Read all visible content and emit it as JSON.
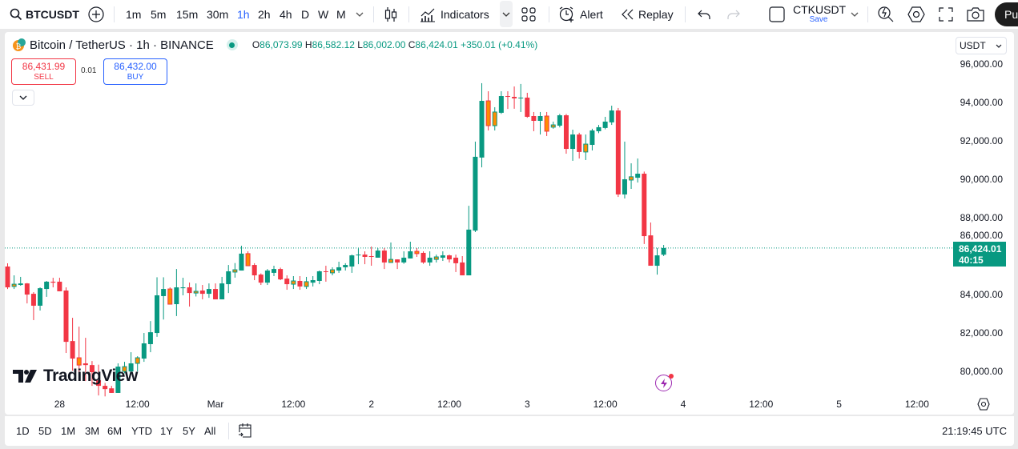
{
  "toolbar": {
    "symbol": "BTCUSDT",
    "intervals": [
      "1m",
      "5m",
      "15m",
      "30m",
      "1h",
      "2h",
      "4h",
      "D",
      "W",
      "M"
    ],
    "active_interval": "1h",
    "indicators_label": "Indicators",
    "alert_label": "Alert",
    "replay_label": "Replay",
    "layout_name": "CTKUSDT",
    "layout_save": "Save",
    "publish_label": "Pu"
  },
  "legend": {
    "title": "Bitcoin / TetherUS · 1h · BINANCE",
    "o_label": "O",
    "o": "86,073.99",
    "h_label": "H",
    "h": "86,582.12",
    "l_label": "L",
    "l": "86,002.00",
    "c_label": "C",
    "c": "86,424.01",
    "change": "+350.01 (+0.41%)"
  },
  "trade": {
    "sell_price": "86,431.99",
    "sell_label": "SELL",
    "spread": "0.01",
    "buy_price": "86,432.00",
    "buy_label": "BUY"
  },
  "price_axis": {
    "currency": "USDT",
    "last_price": "86,424.01",
    "countdown": "40:15"
  },
  "watermark": "TradingView",
  "bottom": {
    "ranges": [
      "1D",
      "5D",
      "1M",
      "3M",
      "6M",
      "YTD",
      "1Y",
      "5Y",
      "All"
    ],
    "clock": "21:19:45 UTC"
  },
  "colors": {
    "up": "#089981",
    "down": "#f23645",
    "highlight": "#ff8c00",
    "accent": "#2962ff"
  },
  "chart_data": {
    "type": "candlestick",
    "ylim": [
      78920,
      97580
    ],
    "y_ticks": [
      96000,
      94000,
      92000,
      90000,
      88000,
      86000,
      84000,
      82000,
      80000
    ],
    "y_tick_labels": [
      "96,000.00",
      "94,000.00",
      "92,000.00",
      "90,000.00",
      "88,000.00",
      "86,000.00",
      "84,000.00",
      "82,000.00",
      "80,000.00"
    ],
    "x_tick_labels": [
      "28",
      "12:00",
      "Mar",
      "12:00",
      "2",
      "12:00",
      "3",
      "12:00",
      "4",
      "12:00",
      "5",
      "12:00"
    ],
    "last_price": 86424.01,
    "ohlc": [
      [
        85460,
        85625,
        84290,
        84375
      ],
      [
        84420,
        85000,
        84290,
        84540
      ],
      [
        84500,
        84920,
        84460,
        84580
      ],
      [
        84580,
        84600,
        83540,
        84000
      ],
      [
        84040,
        84125,
        82670,
        83420
      ],
      [
        83420,
        84375,
        83170,
        84330
      ],
      [
        84290,
        84710,
        83880,
        84670
      ],
      [
        84670,
        84875,
        84375,
        84620
      ],
      [
        84670,
        84875,
        84170,
        84170
      ],
      [
        84210,
        84375,
        80960,
        81540
      ],
      [
        81580,
        82790,
        80040,
        80670
      ],
      [
        80710,
        82330,
        79900,
        80330
      ],
      [
        80420,
        81750,
        79500,
        80330
      ],
      [
        80330,
        80540,
        79250,
        79960
      ],
      [
        79540,
        80350,
        78750,
        79250
      ],
      [
        79250,
        79400,
        78700,
        79080
      ],
      [
        79120,
        79250,
        78880,
        78880
      ],
      [
        78880,
        80420,
        78880,
        80250
      ],
      [
        80000,
        80500,
        79900,
        80250
      ],
      [
        80000,
        81000,
        79830,
        80420
      ],
      [
        80420,
        80790,
        80000,
        80710
      ],
      [
        80670,
        82000,
        80500,
        81460
      ],
      [
        81420,
        82620,
        81000,
        82040
      ],
      [
        82000,
        84900,
        81800,
        83960
      ],
      [
        83920,
        84900,
        82700,
        84290
      ],
      [
        84290,
        84375,
        83500,
        83500
      ],
      [
        83500,
        85330,
        82880,
        84375
      ],
      [
        84330,
        84875,
        83960,
        84375
      ],
      [
        84375,
        84625,
        83375,
        84080
      ],
      [
        84080,
        84580,
        83900,
        84170
      ],
      [
        84210,
        84500,
        83750,
        84040
      ],
      [
        84040,
        84580,
        83830,
        84290
      ],
      [
        84290,
        84580,
        83750,
        83750
      ],
      [
        83750,
        84920,
        83750,
        84580
      ],
      [
        84540,
        85540,
        84080,
        85210
      ],
      [
        85170,
        85640,
        84880,
        85290
      ],
      [
        85250,
        86540,
        85250,
        86130
      ],
      [
        86130,
        86250,
        85500,
        85500
      ],
      [
        85540,
        85630,
        84750,
        85000
      ],
      [
        85040,
        85100,
        84500,
        84620
      ],
      [
        84620,
        85330,
        84500,
        85250
      ],
      [
        85130,
        85500,
        84960,
        85330
      ],
      [
        85330,
        85400,
        84750,
        84790
      ],
      [
        84830,
        85000,
        84250,
        84540
      ],
      [
        84540,
        84960,
        84290,
        84710
      ],
      [
        84710,
        84960,
        84250,
        84420
      ],
      [
        84420,
        84920,
        84290,
        84670
      ],
      [
        84620,
        84960,
        84420,
        84750
      ],
      [
        84710,
        85250,
        84540,
        85210
      ],
      [
        85210,
        85500,
        84670,
        85170
      ],
      [
        85130,
        85420,
        85000,
        85290
      ],
      [
        85250,
        85710,
        85130,
        85420
      ],
      [
        85420,
        85630,
        85250,
        85540
      ],
      [
        85460,
        86080,
        85130,
        86040
      ],
      [
        86040,
        86400,
        85580,
        86080
      ],
      [
        86080,
        86250,
        85580,
        85960
      ],
      [
        86000,
        86500,
        85500,
        85960
      ],
      [
        85920,
        86420,
        85920,
        86290
      ],
      [
        86290,
        86420,
        85330,
        85670
      ],
      [
        85670,
        86710,
        85670,
        85830
      ],
      [
        85830,
        85830,
        85330,
        85670
      ],
      [
        85670,
        86250,
        85600,
        85920
      ],
      [
        85880,
        86750,
        85880,
        86250
      ],
      [
        86250,
        86420,
        85960,
        86130
      ],
      [
        86170,
        86250,
        85600,
        85670
      ],
      [
        85670,
        86250,
        85500,
        85920
      ],
      [
        85830,
        86080,
        85670,
        85960
      ],
      [
        85920,
        86250,
        85750,
        86040
      ],
      [
        86040,
        86080,
        85670,
        85830
      ],
      [
        85920,
        86080,
        85170,
        85630
      ],
      [
        85670,
        86000,
        85000,
        85000
      ],
      [
        85000,
        88620,
        85000,
        87380
      ],
      [
        87330,
        91960,
        87250,
        91170
      ],
      [
        91130,
        95000,
        90620,
        94080
      ],
      [
        94080,
        94580,
        92540,
        92790
      ],
      [
        92790,
        93750,
        92540,
        93500
      ],
      [
        93460,
        94580,
        93400,
        94330
      ],
      [
        94330,
        94580,
        93660,
        94290
      ],
      [
        94290,
        94830,
        93670,
        94210
      ],
      [
        94210,
        94960,
        93500,
        94250
      ],
      [
        94250,
        94500,
        93200,
        93250
      ],
      [
        93290,
        93500,
        92500,
        93040
      ],
      [
        93040,
        93500,
        92330,
        93290
      ],
      [
        93290,
        93500,
        92250,
        92500
      ],
      [
        92710,
        93000,
        92630,
        92830
      ],
      [
        92790,
        93400,
        92700,
        93330
      ],
      [
        93330,
        93400,
        91330,
        91580
      ],
      [
        91580,
        92580,
        90960,
        92330
      ],
      [
        92330,
        92420,
        91080,
        91420
      ],
      [
        91420,
        92330,
        91000,
        91830
      ],
      [
        91790,
        92630,
        91500,
        92540
      ],
      [
        92500,
        92830,
        92400,
        92710
      ],
      [
        92670,
        93250,
        92600,
        93000
      ],
      [
        92960,
        93830,
        92830,
        93580
      ],
      [
        93580,
        93710,
        89080,
        89210
      ],
      [
        89210,
        91960,
        89000,
        90000
      ],
      [
        89960,
        90830,
        89500,
        90130
      ],
      [
        90080,
        91080,
        89830,
        90290
      ],
      [
        90290,
        90400,
        86630,
        87040
      ],
      [
        87080,
        87750,
        85500,
        85500
      ],
      [
        85500,
        86420,
        85040,
        86040
      ],
      [
        86073.99,
        86582.12,
        86002.0,
        86424.01
      ]
    ],
    "highlighted_candles": [
      1,
      11,
      18,
      20,
      25,
      29,
      35,
      37,
      44,
      46,
      50,
      59,
      63,
      66,
      74,
      75,
      83,
      84,
      89,
      96
    ]
  }
}
